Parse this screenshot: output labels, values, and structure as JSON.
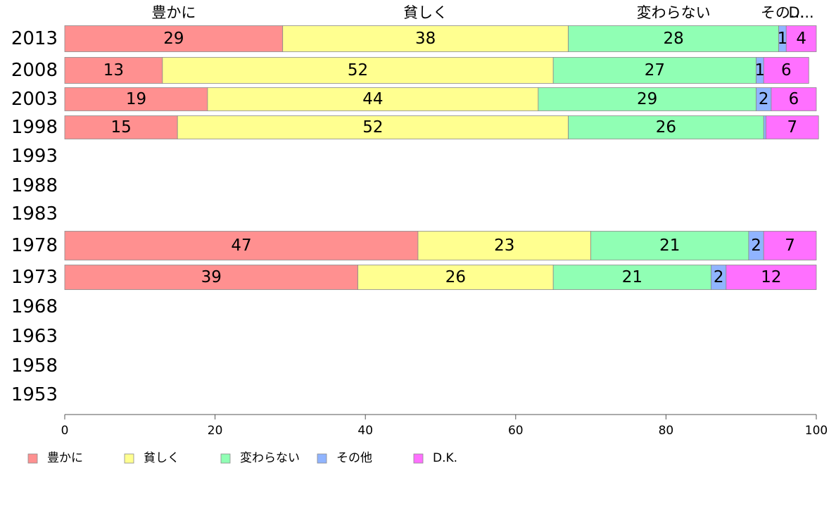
{
  "chart_data": {
    "type": "bar",
    "orientation": "horizontal",
    "stacked": true,
    "categories": [
      "2013",
      "2008",
      "2003",
      "1998",
      "1993",
      "1988",
      "1983",
      "1978",
      "1973",
      "1968",
      "1963",
      "1958",
      "1953"
    ],
    "series": [
      {
        "name": "豊かに",
        "color": "#ff9090",
        "values": [
          29,
          13,
          19,
          15,
          null,
          null,
          null,
          47,
          39,
          null,
          null,
          null,
          null
        ]
      },
      {
        "name": "貧しく",
        "color": "#ffff90",
        "values": [
          38,
          52,
          44,
          52,
          null,
          null,
          null,
          23,
          26,
          null,
          null,
          null,
          null
        ]
      },
      {
        "name": "変わらない",
        "color": "#90ffb4",
        "values": [
          28,
          27,
          29,
          26,
          null,
          null,
          null,
          21,
          21,
          null,
          null,
          null,
          null
        ]
      },
      {
        "name": "その他",
        "color": "#90b4ff",
        "values": [
          1,
          1,
          2,
          0.3,
          null,
          null,
          null,
          2,
          2,
          null,
          null,
          null,
          null
        ]
      },
      {
        "name": "D.K.",
        "color": "#ff70ff",
        "values": [
          4,
          6,
          6,
          7,
          null,
          null,
          null,
          7,
          12,
          null,
          null,
          null,
          null
        ]
      }
    ],
    "segment_labels": [
      [
        "29",
        "38",
        "28",
        "1",
        "4"
      ],
      [
        "13",
        "52",
        "27",
        "1",
        "6"
      ],
      [
        "19",
        "44",
        "29",
        "2",
        "6"
      ],
      [
        "15",
        "52",
        "26",
        "",
        "7"
      ],
      null,
      null,
      null,
      [
        "47",
        "23",
        "21",
        "2",
        "7"
      ],
      [
        "39",
        "26",
        "21",
        "2",
        "12"
      ],
      null,
      null,
      null,
      null
    ],
    "column_headers": [
      "豊かに",
      "貧しく",
      "変わらない",
      "その...",
      "D..."
    ],
    "xlim": [
      0,
      100
    ],
    "xticks": [
      "0",
      "20",
      "40",
      "60",
      "80",
      "100"
    ],
    "legend_position": "bottom-left",
    "grid": false
  }
}
